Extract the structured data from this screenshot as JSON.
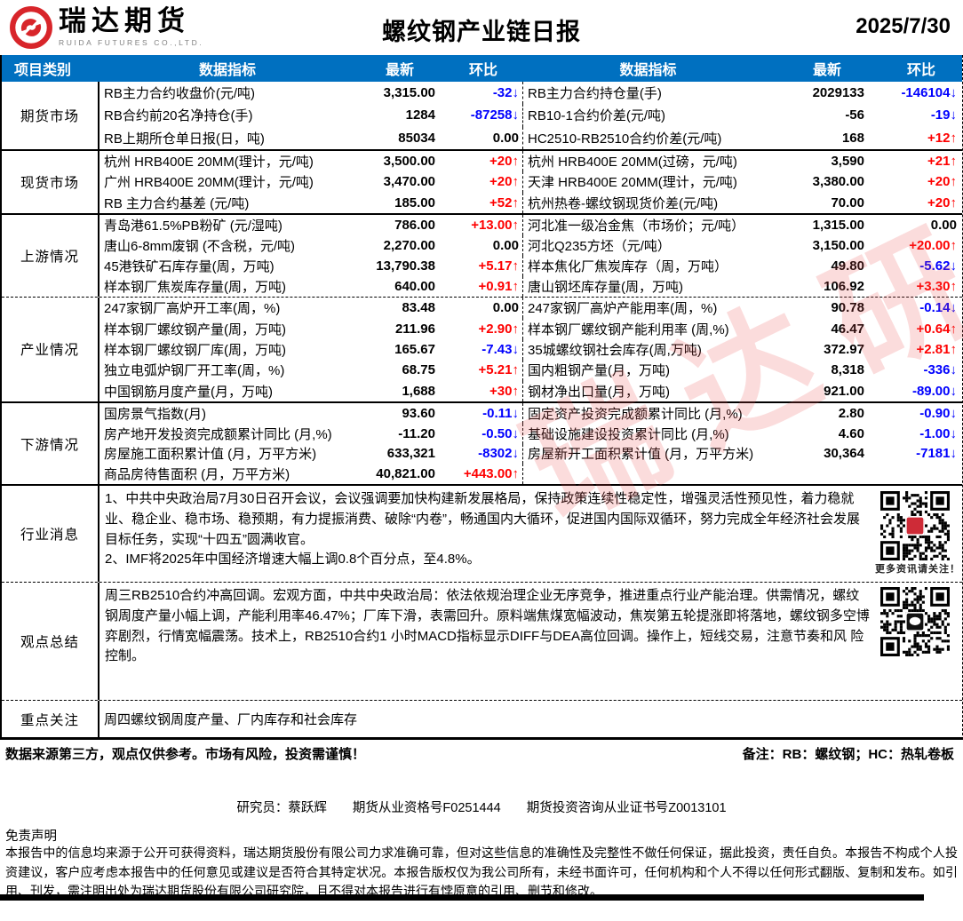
{
  "header": {
    "logo_cn": "瑞达期货",
    "logo_en": "RUIDA FUTURES CO.,LTD.",
    "title": "螺纹钢产业链日报",
    "date": "2025/7/30"
  },
  "colors": {
    "header_bg": "#0070C0",
    "up_red": "#FE0000",
    "down_blue": "#0000FE"
  },
  "watermark": "瑞达研究",
  "table": {
    "columns": [
      "项目类别",
      "数据指标",
      "最新",
      "环比",
      "数据指标",
      "最新",
      "环比"
    ],
    "sections": [
      {
        "id": "futures",
        "css": "s-futures",
        "category": "期货市场",
        "rows": [
          {
            "l_label": "RB主力合约收盘价(元/吨)",
            "l_value": "3,315.00",
            "l_change": "-32↓",
            "l_dir": "down",
            "r_label": "RB主力合约持仓量(手)",
            "r_value": "2029133",
            "r_change": "-146104↓",
            "r_dir": "down"
          },
          {
            "l_label": "RB合约前20名净持仓(手)",
            "l_value": "1284",
            "l_change": "-87258↓",
            "l_dir": "down",
            "r_label": "RB10-1合约价差(元/吨)",
            "r_value": "-56",
            "r_change": "-19↓",
            "r_dir": "down"
          },
          {
            "l_label": "RB上期所仓单日报(日，吨)",
            "l_value": "85034",
            "l_change": "0.00",
            "l_dir": "flat",
            "r_label": "HC2510-RB2510合约价差(元/吨)",
            "r_value": "168",
            "r_change": "+12↑",
            "r_dir": "up"
          }
        ]
      },
      {
        "id": "spot",
        "css": "s-spot bt-solid",
        "category": "现货市场",
        "rows": [
          {
            "l_label": "杭州 HRB400E 20MM(理计，元/吨)",
            "l_value": "3,500.00",
            "l_change": "+20↑",
            "l_dir": "up",
            "r_label": "杭州 HRB400E 20MM(过磅，元/吨)",
            "r_value": "3,590",
            "r_change": "+21↑",
            "r_dir": "up"
          },
          {
            "l_label": "广州 HRB400E 20MM(理计，元/吨)",
            "l_value": "3,470.00",
            "l_change": "+20↑",
            "l_dir": "up",
            "r_label": "天津 HRB400E 20MM(理计，元/吨)",
            "r_value": "3,380.00",
            "r_change": "+20↑",
            "r_dir": "up"
          },
          {
            "l_label": "RB 主力合约基差 (元/吨)",
            "l_value": "185.00",
            "l_change": "+52↑",
            "l_dir": "up",
            "r_label": "杭州热卷-螺纹钢现货价差(元/吨)",
            "r_value": "70.00",
            "r_change": "+20↑",
            "r_dir": "up"
          }
        ]
      },
      {
        "id": "upstream",
        "css": "s-up bt-solid",
        "category": "上游情况",
        "rows": [
          {
            "l_label": "青岛港61.5%PB粉矿 (元/湿吨)",
            "l_value": "786.00",
            "l_change": "+13.00↑",
            "l_dir": "up",
            "r_label": "河北准一级冶金焦（市场价；元/吨）",
            "r_value": "1,315.00",
            "r_change": "0.00",
            "r_dir": "flat"
          },
          {
            "l_label": "唐山6-8mm废钢 (不含税，元/吨)",
            "l_value": "2,270.00",
            "l_change": "0.00",
            "l_dir": "flat",
            "r_label": "河北Q235方坯（元/吨）",
            "r_value": "3,150.00",
            "r_change": "+20.00↑",
            "r_dir": "up"
          },
          {
            "l_label": "45港铁矿石库存量(周，万吨)",
            "l_value": "13,790.38",
            "l_change": "+5.17↑",
            "l_dir": "up",
            "r_label": "样本焦化厂焦炭库存（周，万吨）",
            "r_value": "49.80",
            "r_change": "-5.62↓",
            "r_dir": "down"
          },
          {
            "l_label": "样本钢厂焦炭库存量(周，万吨)",
            "l_value": "640.00",
            "l_change": "+0.91↑",
            "l_dir": "up",
            "r_label": "唐山钢坯库存量(周，万吨)",
            "r_value": "106.92",
            "r_change": "+3.30↑",
            "r_dir": "up"
          }
        ]
      },
      {
        "id": "industry",
        "css": "s-ind bt-dash",
        "category": "产业情况",
        "rows": [
          {
            "l_label": "247家钢厂高炉开工率(周，%)",
            "l_value": "83.48",
            "l_change": "0.00",
            "l_dir": "flat",
            "r_label": "247家钢厂高炉产能用率(周，%)",
            "r_value": "90.78",
            "r_change": "-0.14↓",
            "r_dir": "down"
          },
          {
            "l_label": "样本钢厂螺纹钢产量(周，万吨)",
            "l_value": "211.96",
            "l_change": "+2.90↑",
            "l_dir": "up",
            "r_label": "样本钢厂螺纹钢产能利用率 (周,%)",
            "r_value": "46.47",
            "r_change": "+0.64↑",
            "r_dir": "up"
          },
          {
            "l_label": "样本钢厂螺纹钢厂库(周，万吨)",
            "l_value": "165.67",
            "l_change": "-7.43↓",
            "l_dir": "down",
            "r_label": "35城螺纹钢社会库存(周,万吨)",
            "r_value": "372.97",
            "r_change": "+2.81↑",
            "r_dir": "up"
          },
          {
            "l_label": "独立电弧炉钢厂开工率(周，%)",
            "l_value": "68.75",
            "l_change": "+5.21↑",
            "l_dir": "up",
            "r_label": "国内粗钢产量(月，万吨)",
            "r_value": "8,318",
            "r_change": "-336↓",
            "r_dir": "down"
          },
          {
            "l_label": "中国钢筋月度产量(月，万吨)",
            "l_value": "1,688",
            "l_change": "+30↑",
            "l_dir": "up",
            "r_label": "钢材净出口量(月，万吨)",
            "r_value": "921.00",
            "r_change": "-89.00↓",
            "r_dir": "down"
          }
        ]
      },
      {
        "id": "downstream",
        "css": "s-down bt-solid",
        "category": "下游情况",
        "rows": [
          {
            "l_label": "国房景气指数(月)",
            "l_value": "93.60",
            "l_change": "-0.11↓",
            "l_dir": "down",
            "r_label": "固定资产投资完成额累计同比 (月,%)",
            "r_value": "2.80",
            "r_change": "-0.90↓",
            "r_dir": "down"
          },
          {
            "l_label": "房产地开发投资完成额累计同比 (月,%)",
            "l_value": "-11.20",
            "l_change": "-0.50↓",
            "l_dir": "down",
            "r_label": "基础设施建设投资累计同比 (月,%)",
            "r_value": "4.60",
            "r_change": "-1.00↓",
            "r_dir": "down"
          },
          {
            "l_label": "房屋施工面积累计值 (月，万平方米)",
            "l_value": "633,321",
            "l_change": "-8302↓",
            "l_dir": "down",
            "r_label": "房屋新开工面积累计值 (月，万平方米)",
            "r_value": "30,364",
            "r_change": "-7181↓",
            "r_dir": "down"
          },
          {
            "l_label": "商品房待售面积 (月，万平方米)",
            "l_value": "40,821.00",
            "l_change": "+443.00↑",
            "l_dir": "up",
            "r_label": "",
            "r_value": "",
            "r_change": "",
            "r_dir": "flat"
          }
        ]
      }
    ]
  },
  "news": {
    "category": "行业消息",
    "body": "1、中共中央政治局7月30日召开会议，会议强调要加快构建新发展格局，保持政策连续性稳定性，增强灵活性预见性，着力稳就业、稳企业、稳市场、稳预期，有力提振消费、破除“内卷”，畅通国内大循环，促进国内国际双循环，努力完成全年经济社会发展目标任务，实现“十四五”圆满收官。\n2、IMF将2025年中国经济增速大幅上调0.8个百分点，至4.8%。",
    "qr_caption": "更多资讯请关注！"
  },
  "viewpoint": {
    "category": "观点总结",
    "body": "周三RB2510合约冲高回调。宏观方面，中共中央政治局：依法依规治理企业无序竞争，推进重点行业产能治理。供需情况，螺纹钢周度产量小幅上调，产能利用率46.47%；厂库下滑，表需回升。原料端焦煤宽幅波动，焦炭第五轮提涨即将落地，螺纹钢多空博弈剧烈，行情宽幅震荡。技术上，RB2510合约1 小时MACD指标显示DIFF与DEA高位回调。操作上，短线交易，注意节奏和风 险控制。"
  },
  "focus": {
    "category": "重点关注",
    "body": "周四螺纹钢周度产量、厂内库存和社会库存"
  },
  "footer": {
    "risk_note": "数据来源第三方，观点仅供参考。市场有风险，投资需谨慎！",
    "remark": "备注：RB：螺纹钢；HC：热轧卷板",
    "researcher_line": "研究员：蔡跃辉　　期货从业资格号F0251444　　期货投资咨询从业证书号Z0013101",
    "disclaimer_title": "免责声明",
    "disclaimer_body": "本报告中的信息均来源于公开可获得资料，瑞达期货股份有限公司力求准确可靠，但对这些信息的准确性及完整性不做任何保证，据此投资，责任自负。本报告不构成个人投资建议，客户应考虑本报告中的任何意见或建议是否符合其特定状况。本报告版权仅为我公司所有，未经书面许可，任何机构和个人不得以任何形式翻版、复制和发布。如引用、刊发，需注明出处为瑞达期货股份有限公司研究院，且不得对本报告进行有悖原意的引用、删节和修改。"
  }
}
